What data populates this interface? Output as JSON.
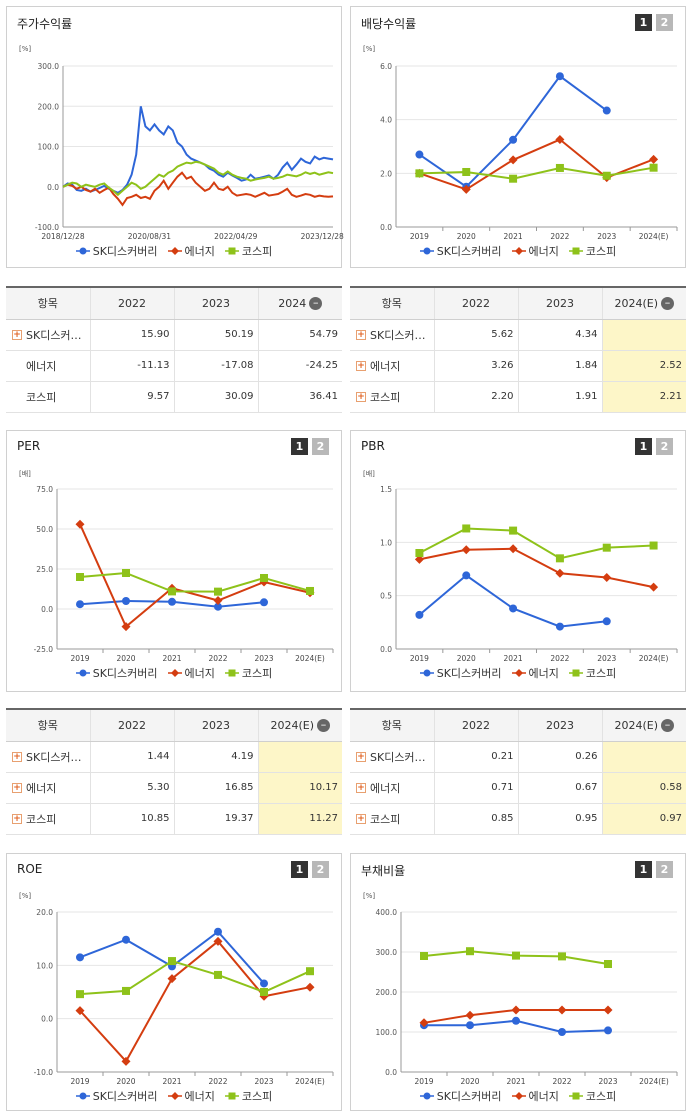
{
  "colors": {
    "sk": "#2e66d8",
    "energy": "#d43d10",
    "kospi": "#8ec21a"
  },
  "legend": [
    "SK디스커버리",
    "에너지",
    "코스피"
  ],
  "panels": {
    "stock": {
      "title": "주가수익률",
      "unit": "[%]"
    },
    "dividend": {
      "title": "배당수익률",
      "unit": "[%]"
    },
    "per": {
      "title": "PER",
      "unit": "[배]"
    },
    "pbr": {
      "title": "PBR",
      "unit": "[배]"
    },
    "roe": {
      "title": "ROE",
      "unit": "[%]"
    },
    "debt": {
      "title": "부채비율",
      "unit": "[%]"
    }
  },
  "pager": [
    "1",
    "2"
  ],
  "tables": {
    "stock": {
      "headers": [
        "항목",
        "2022",
        "2023",
        "2024"
      ],
      "rows": [
        {
          "name": "SK디스커…",
          "plus": true,
          "v": [
            "15.90",
            "50.19",
            "54.79"
          ]
        },
        {
          "name": "에너지",
          "plus": false,
          "v": [
            "-11.13",
            "-17.08",
            "-24.25"
          ]
        },
        {
          "name": "코스피",
          "plus": false,
          "v": [
            "9.57",
            "30.09",
            "36.41"
          ]
        }
      ]
    },
    "dividend": {
      "headers": [
        "항목",
        "2022",
        "2023",
        "2024(E)"
      ],
      "rows": [
        {
          "name": "SK디스커…",
          "plus": true,
          "v": [
            "5.62",
            "4.34",
            ""
          ]
        },
        {
          "name": "에너지",
          "plus": true,
          "v": [
            "3.26",
            "1.84",
            "2.52"
          ]
        },
        {
          "name": "코스피",
          "plus": true,
          "v": [
            "2.20",
            "1.91",
            "2.21"
          ]
        }
      ]
    },
    "per": {
      "headers": [
        "항목",
        "2022",
        "2023",
        "2024(E)"
      ],
      "rows": [
        {
          "name": "SK디스커…",
          "plus": true,
          "v": [
            "1.44",
            "4.19",
            ""
          ]
        },
        {
          "name": "에너지",
          "plus": true,
          "v": [
            "5.30",
            "16.85",
            "10.17"
          ]
        },
        {
          "name": "코스피",
          "plus": true,
          "v": [
            "10.85",
            "19.37",
            "11.27"
          ]
        }
      ]
    },
    "pbr": {
      "headers": [
        "항목",
        "2022",
        "2023",
        "2024(E)"
      ],
      "rows": [
        {
          "name": "SK디스커…",
          "plus": true,
          "v": [
            "0.21",
            "0.26",
            ""
          ]
        },
        {
          "name": "에너지",
          "plus": true,
          "v": [
            "0.71",
            "0.67",
            "0.58"
          ]
        },
        {
          "name": "코스피",
          "plus": true,
          "v": [
            "0.85",
            "0.95",
            "0.97"
          ]
        }
      ]
    }
  },
  "chart_data": [
    {
      "id": "stock",
      "type": "line",
      "x_ticks": [
        "2018/12/28",
        "2020/08/31",
        "2022/04/29",
        "2023/12/28"
      ],
      "yticks": [
        "300.0",
        "200.0",
        "100.0",
        "0.0",
        "-100.0"
      ],
      "ylim": [
        -100,
        300
      ],
      "series": [
        {
          "name": "SK디스커버리",
          "values": [
            0,
            8,
            5,
            -8,
            -10,
            -5,
            -12,
            -8,
            -3,
            2,
            -5,
            -10,
            -15,
            -8,
            5,
            30,
            80,
            200,
            150,
            140,
            155,
            140,
            130,
            150,
            140,
            110,
            100,
            80,
            70,
            65,
            60,
            55,
            45,
            40,
            30,
            25,
            35,
            28,
            22,
            15,
            18,
            30,
            20,
            22,
            25,
            28,
            20,
            30,
            48,
            60,
            42,
            55,
            70,
            62,
            58,
            75,
            68,
            72,
            70,
            68
          ]
        },
        {
          "name": "에너지",
          "values": [
            0,
            5,
            2,
            -5,
            0,
            -8,
            -12,
            -5,
            -15,
            -8,
            -2,
            -18,
            -30,
            -45,
            -28,
            -25,
            -20,
            -28,
            -25,
            -30,
            -10,
            0,
            15,
            -5,
            10,
            25,
            35,
            20,
            25,
            10,
            0,
            -10,
            -5,
            10,
            -5,
            -8,
            0,
            -15,
            -22,
            -20,
            -18,
            -20,
            -25,
            -20,
            -15,
            -22,
            -20,
            -18,
            -12,
            -5,
            -20,
            -25,
            -22,
            -18,
            -20,
            -25,
            -22,
            -24,
            -25,
            -24
          ]
        },
        {
          "name": "코스피",
          "values": [
            0,
            5,
            10,
            8,
            0,
            5,
            2,
            0,
            5,
            8,
            -2,
            -10,
            -20,
            -10,
            0,
            10,
            5,
            -5,
            0,
            10,
            20,
            30,
            25,
            35,
            40,
            50,
            55,
            60,
            58,
            62,
            60,
            55,
            50,
            45,
            35,
            30,
            38,
            30,
            25,
            22,
            20,
            15,
            18,
            20,
            22,
            25,
            20,
            22,
            25,
            30,
            28,
            26,
            30,
            36,
            32,
            35,
            30,
            33,
            36,
            34
          ]
        }
      ]
    },
    {
      "id": "dividend",
      "type": "line",
      "categories": [
        "2019",
        "2020",
        "2021",
        "2022",
        "2023",
        "2024(E)"
      ],
      "yticks": [
        "6.0",
        "4.0",
        "2.0",
        "0.0"
      ],
      "ylim": [
        0,
        6
      ],
      "series": [
        {
          "name": "SK디스커버리",
          "values": [
            2.7,
            1.5,
            3.25,
            5.62,
            4.34,
            null
          ]
        },
        {
          "name": "에너지",
          "values": [
            2.0,
            1.4,
            2.5,
            3.26,
            1.84,
            2.52
          ]
        },
        {
          "name": "코스피",
          "values": [
            2.0,
            2.05,
            1.8,
            2.2,
            1.91,
            2.21
          ]
        }
      ]
    },
    {
      "id": "per",
      "type": "line",
      "categories": [
        "2019",
        "2020",
        "2021",
        "2022",
        "2023",
        "2024(E)"
      ],
      "yticks": [
        "75.0",
        "50.0",
        "25.0",
        "0.0",
        "-25.0"
      ],
      "ylim": [
        -25,
        75
      ],
      "series": [
        {
          "name": "SK디스커버리",
          "values": [
            3.0,
            5.0,
            4.5,
            1.44,
            4.19,
            null
          ]
        },
        {
          "name": "에너지",
          "values": [
            53.0,
            -11.0,
            13.0,
            5.3,
            16.85,
            10.17
          ]
        },
        {
          "name": "코스피",
          "values": [
            20.0,
            22.5,
            11.0,
            10.85,
            19.37,
            11.27
          ]
        }
      ]
    },
    {
      "id": "pbr",
      "type": "line",
      "categories": [
        "2019",
        "2020",
        "2021",
        "2022",
        "2023",
        "2024(E)"
      ],
      "yticks": [
        "1.5",
        "1.0",
        "0.5",
        "0.0"
      ],
      "ylim": [
        0,
        1.5
      ],
      "series": [
        {
          "name": "SK디스커버리",
          "values": [
            0.32,
            0.69,
            0.38,
            0.21,
            0.26,
            null
          ]
        },
        {
          "name": "에너지",
          "values": [
            0.84,
            0.93,
            0.94,
            0.71,
            0.67,
            0.58
          ]
        },
        {
          "name": "코스피",
          "values": [
            0.9,
            1.13,
            1.11,
            0.85,
            0.95,
            0.97
          ]
        }
      ]
    },
    {
      "id": "roe",
      "type": "line",
      "categories": [
        "2019",
        "2020",
        "2021",
        "2022",
        "2023",
        "2024(E)"
      ],
      "yticks": [
        "20.0",
        "10.0",
        "0.0",
        "-10.0"
      ],
      "ylim": [
        -10,
        20
      ],
      "series": [
        {
          "name": "SK디스커버리",
          "values": [
            11.5,
            14.8,
            9.8,
            16.3,
            6.6,
            null
          ]
        },
        {
          "name": "에너지",
          "values": [
            1.5,
            -8.0,
            7.5,
            14.5,
            4.2,
            5.9
          ]
        },
        {
          "name": "코스피",
          "values": [
            4.6,
            5.2,
            10.8,
            8.2,
            5.0,
            8.9
          ]
        }
      ]
    },
    {
      "id": "debt",
      "type": "line",
      "categories": [
        "2019",
        "2020",
        "2021",
        "2022",
        "2023",
        "2024(E)"
      ],
      "yticks": [
        "400.0",
        "300.0",
        "200.0",
        "100.0",
        "0.0"
      ],
      "ylim": [
        0,
        400
      ],
      "series": [
        {
          "name": "SK디스커버리",
          "values": [
            117,
            117,
            128,
            100,
            104,
            null
          ]
        },
        {
          "name": "에너지",
          "values": [
            123,
            142,
            155,
            155,
            155,
            null
          ]
        },
        {
          "name": "코스피",
          "values": [
            290,
            302,
            291,
            289,
            270,
            null
          ]
        }
      ]
    }
  ]
}
